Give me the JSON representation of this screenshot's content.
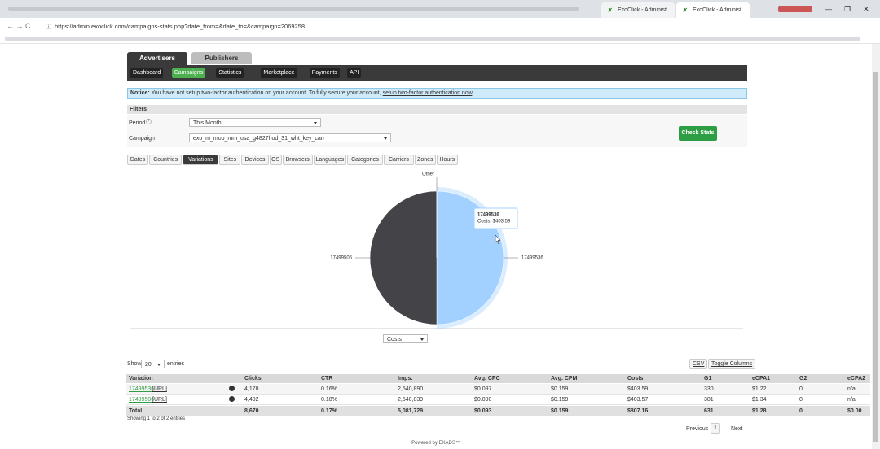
{
  "browser": {
    "tabs": [
      "ExoClick - Administ",
      "ExoClick - Administ"
    ],
    "url": "https://admin.exoclick.com/campaigns-stats.php?date_from=&date_to=&campaign=2069258"
  },
  "header": {
    "tabs": [
      "Advertisers",
      "Publishers"
    ],
    "nav": [
      "Dashboard",
      "Campaigns",
      "Statistics",
      "Marketplace",
      "Payments",
      "API"
    ],
    "active_nav": 1
  },
  "notice": {
    "label": "Notice:",
    "text": "You have not setup two-factor authentication on your account. To fully secure your account,",
    "link": "setup two-factor authentication now",
    "end": "."
  },
  "filters": {
    "title": "Filters",
    "period_label": "Period",
    "period_help": "?",
    "period_value": "This Month",
    "campaign_label": "Campaign",
    "campaign_value": "exo_m_mob_mm_usa_g4827hod_31_wht_key_carr",
    "button": "Check Stats"
  },
  "view_tabs": {
    "items": [
      "Dates",
      "Countries",
      "Variations",
      "Sites",
      "Devices",
      "OS",
      "Browsers",
      "Languages",
      "Categories",
      "Carriers",
      "Zones",
      "Hours"
    ],
    "active": 2
  },
  "chart_data": {
    "type": "pie",
    "categories": [
      "17499536",
      "17499506",
      "Other"
    ],
    "values": [
      403.59,
      403.57,
      0
    ],
    "colors": [
      "#a3d1ff",
      "#434348",
      "#90ed7d"
    ],
    "tooltip": {
      "title": "17499536",
      "text": "Costs: $403.59"
    },
    "metric_select": "Costs"
  },
  "table": {
    "show": "Show",
    "length": "20",
    "entries": "entries",
    "buttons": [
      "CSV",
      "Toggle Columns"
    ],
    "columns": [
      "Variation",
      "Clicks",
      "CTR",
      "Imps.",
      "Avg. CPC",
      "Avg. CPM",
      "Costs",
      "G1",
      "eCPA1",
      "G2",
      "eCPA2"
    ],
    "rows": [
      [
        "17499536",
        "[URL]",
        "4,178",
        "0.16%",
        "2,540,890",
        "$0.097",
        "$0.159",
        "$403.59",
        "330",
        "$1.22",
        "0",
        "n/a"
      ],
      [
        "17499506",
        "[URL]",
        "4,492",
        "0.18%",
        "2,540,839",
        "$0.090",
        "$0.159",
        "$403.57",
        "301",
        "$1.34",
        "0",
        "n/a"
      ]
    ],
    "total": [
      "Total",
      "8,670",
      "0.17%",
      "5,081,729",
      "$0.093",
      "$0.159",
      "$807.16",
      "631",
      "$1.28",
      "0",
      "$0.00"
    ],
    "info": "Showing 1 to 2 of 2 entries",
    "pagination": [
      "Previous",
      "1",
      "Next"
    ]
  },
  "footer": "Powered by EXADS™"
}
